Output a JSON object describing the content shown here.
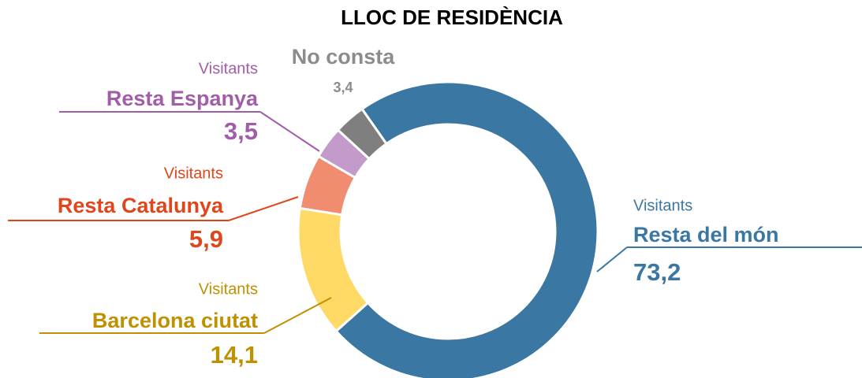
{
  "chart_data": {
    "type": "donut",
    "title": "LLOC DE RESIDÈNCIA",
    "categories": [
      "Resta del món",
      "Barcelona ciutat",
      "Resta Catalunya",
      "Resta Espanya",
      "No consta"
    ],
    "label_prefixes": [
      "Visitants",
      "Visitants",
      "Visitants",
      "Visitants",
      null
    ],
    "values": [
      73.2,
      14.1,
      5.9,
      3.5,
      3.4
    ],
    "value_labels": [
      "73,2",
      "14,1",
      "5,9",
      "3,5",
      "3,4"
    ],
    "colors": [
      "#3b77a3",
      "#ffd966",
      "#f08c70",
      "#c39bcb",
      "#7f7f7f"
    ],
    "label_colors": [
      "#3b77a3",
      "#bf9000",
      "#e0461c",
      "#a25da8",
      "#8c8c8c"
    ]
  }
}
